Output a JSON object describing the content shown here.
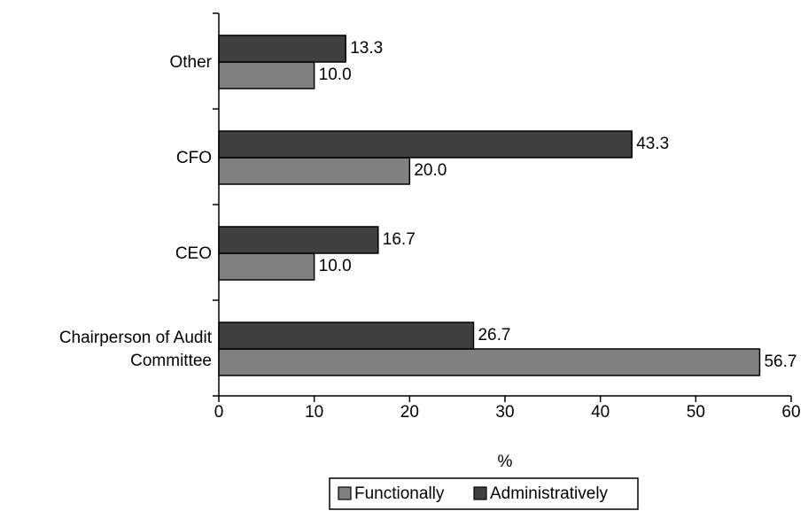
{
  "chart_data": {
    "type": "bar",
    "orientation": "horizontal",
    "categories": [
      "Chairperson of Audit Committee",
      "CEO",
      "CFO",
      "Other"
    ],
    "series": [
      {
        "name": "Functionally",
        "color": "#808080",
        "values": [
          56.7,
          10,
          20,
          10
        ],
        "value_labels": [
          "56.7",
          "10.0",
          "20.0",
          "10.0"
        ]
      },
      {
        "name": "Administratively",
        "color": "#404040",
        "values": [
          26.7,
          16.7,
          43.3,
          13.3
        ],
        "value_labels": [
          "26.7",
          "16.7",
          "43.3",
          "13.3"
        ]
      }
    ],
    "xlabel": "%",
    "xlim": [
      0,
      60
    ],
    "xticks": [
      0,
      10,
      20,
      30,
      40,
      50,
      60
    ],
    "grid": false,
    "legend": "bottom"
  }
}
